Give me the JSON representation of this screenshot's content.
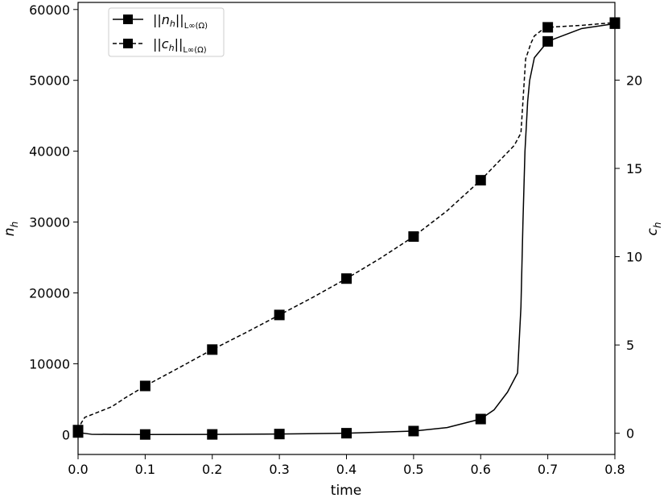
{
  "chart_data": {
    "type": "line",
    "xlabel": "time",
    "ylabel_left": "n",
    "ylabel_left_sub": "h",
    "ylabel_right": "c",
    "ylabel_right_sub": "h",
    "xlim": [
      0,
      0.8
    ],
    "ylim_left": [
      -2800,
      61000
    ],
    "ylim_right": [
      -1.2,
      24.4
    ],
    "x_ticks": [
      0.0,
      0.1,
      0.2,
      0.3,
      0.4,
      0.5,
      0.6,
      0.7,
      0.8
    ],
    "x_tick_labels": [
      "0.0",
      "0.1",
      "0.2",
      "0.3",
      "0.4",
      "0.5",
      "0.6",
      "0.7",
      "0.8"
    ],
    "y_left_ticks": [
      0,
      10000,
      20000,
      30000,
      40000,
      50000,
      60000
    ],
    "y_left_tick_labels": [
      "0",
      "10000",
      "20000",
      "30000",
      "40000",
      "50000",
      "60000"
    ],
    "y_right_ticks": [
      0,
      5,
      10,
      15,
      20
    ],
    "y_right_tick_labels": [
      "0",
      "5",
      "10",
      "15",
      "20"
    ],
    "grid": false,
    "legend_position": "top-left",
    "series": [
      {
        "name": "||n_h||_{L∞(Ω)}",
        "legend_main": "||n",
        "legend_sub_h": "h",
        "legend_close": "||",
        "legend_norm": "L∞(Ω)",
        "axis": "left",
        "style": "solid",
        "marker": "square",
        "markers_x": [
          0.0,
          0.1,
          0.2,
          0.3,
          0.4,
          0.5,
          0.6,
          0.7,
          0.8
        ],
        "markers_y": [
          300,
          20,
          30,
          80,
          200,
          500,
          2200,
          55500,
          58000
        ],
        "x": [
          0.0,
          0.02,
          0.05,
          0.1,
          0.2,
          0.3,
          0.4,
          0.5,
          0.55,
          0.6,
          0.62,
          0.64,
          0.655,
          0.66,
          0.663,
          0.666,
          0.67,
          0.673,
          0.68,
          0.7,
          0.75,
          0.8
        ],
        "y": [
          300,
          50,
          25,
          20,
          30,
          80,
          200,
          500,
          1000,
          2200,
          3500,
          6000,
          8700,
          18000,
          30000,
          40000,
          47000,
          50000,
          53200,
          55500,
          57300,
          58000
        ]
      },
      {
        "name": "||c_h||_{L∞(Ω)}",
        "legend_main": "||c",
        "legend_sub_h": "h",
        "legend_close": "||",
        "legend_norm": "L∞(Ω)",
        "axis": "right",
        "style": "dashed",
        "marker": "square",
        "markers_x": [
          0.0,
          0.1,
          0.2,
          0.3,
          0.4,
          0.5,
          0.6,
          0.7,
          0.8
        ],
        "markers_y": [
          0.18,
          2.68,
          4.74,
          6.7,
          8.76,
          11.14,
          14.33,
          22.99,
          23.26
        ],
        "x": [
          0.0,
          0.005,
          0.01,
          0.03,
          0.05,
          0.07,
          0.1,
          0.15,
          0.2,
          0.25,
          0.3,
          0.35,
          0.4,
          0.45,
          0.5,
          0.55,
          0.6,
          0.65,
          0.66,
          0.667,
          0.675,
          0.68,
          0.69,
          0.7,
          0.75,
          0.8
        ],
        "y": [
          0.18,
          0.6,
          0.9,
          1.2,
          1.5,
          2.0,
          2.68,
          3.7,
          4.74,
          5.7,
          6.7,
          7.7,
          8.76,
          9.9,
          11.14,
          12.6,
          14.33,
          16.3,
          17.0,
          21.2,
          22.1,
          22.5,
          22.8,
          22.99,
          23.1,
          23.26
        ]
      }
    ]
  }
}
